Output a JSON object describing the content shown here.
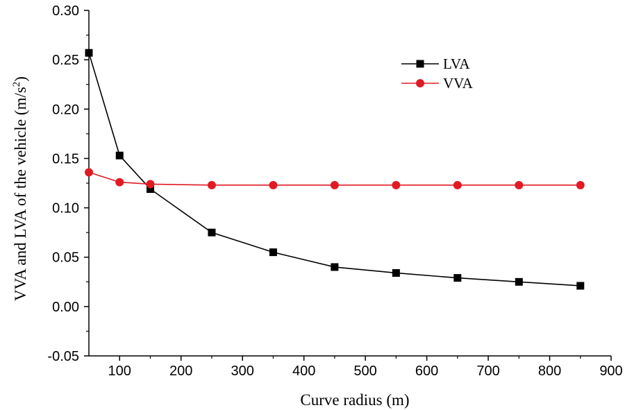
{
  "chart_data": {
    "type": "line",
    "title": "",
    "xlabel": "Curve radius (m)",
    "ylabel_main": "VVA and LVA of the vehicle (m/s",
    "ylabel_sup": "2",
    "ylabel_close": ")",
    "xlim": [
      50,
      900
    ],
    "ylim": [
      -0.05,
      0.3
    ],
    "x_ticks": [
      100,
      200,
      300,
      400,
      500,
      600,
      700,
      800,
      900
    ],
    "x_tick_labels": [
      "100",
      "200",
      "300",
      "400",
      "500",
      "600",
      "700",
      "800",
      "900"
    ],
    "y_ticks": [
      -0.05,
      0.0,
      0.05,
      0.1,
      0.15,
      0.2,
      0.25,
      0.3
    ],
    "y_tick_labels": [
      "-0.05",
      "0.00",
      "0.05",
      "0.10",
      "0.15",
      "0.20",
      "0.25",
      "0.30"
    ],
    "grid": false,
    "legend_position": "top-right",
    "x": [
      50,
      100,
      150,
      250,
      350,
      450,
      550,
      650,
      750,
      850
    ],
    "series": [
      {
        "name": "LVA",
        "color": "#000000",
        "marker": "square",
        "values": [
          0.257,
          0.153,
          0.119,
          0.075,
          0.055,
          0.04,
          0.034,
          0.029,
          0.025,
          0.021
        ]
      },
      {
        "name": "VVA",
        "color": "#e01b24",
        "marker": "circle",
        "values": [
          0.136,
          0.126,
          0.124,
          0.123,
          0.123,
          0.123,
          0.123,
          0.123,
          0.123,
          0.123
        ]
      }
    ]
  }
}
